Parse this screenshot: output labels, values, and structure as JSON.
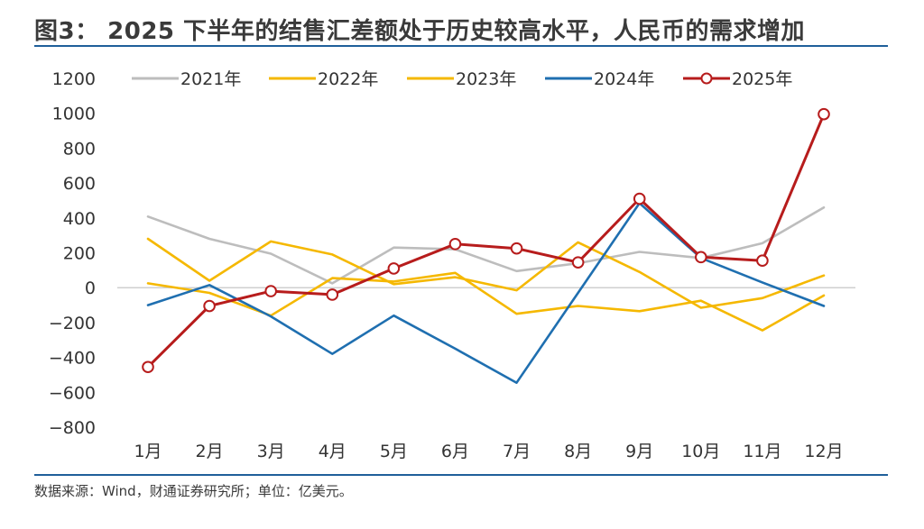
{
  "figure": {
    "title": "图3： 2025 下半年的结售汇差额处于历史较高水平，人民币的需求增加",
    "source": "数据来源：Wind，财通证券研究所；单位：亿美元。"
  },
  "chart_data": {
    "type": "line",
    "title": "",
    "xlabel": "",
    "ylabel": "",
    "ylim": [
      -800,
      1200
    ],
    "yticks": [
      "1200",
      "1000",
      "800",
      "600",
      "400",
      "200",
      "0",
      "−200",
      "−400",
      "−600",
      "−800"
    ],
    "yticks_values": [
      1200,
      1000,
      800,
      600,
      400,
      200,
      0,
      -200,
      -400,
      -600,
      -800
    ],
    "categories": [
      "1月",
      "2月",
      "3月",
      "4月",
      "5月",
      "6月",
      "7月",
      "8月",
      "9月",
      "10月",
      "11月",
      "12月"
    ],
    "legend_position": "top",
    "series": [
      {
        "name": "2021年",
        "color": "#bdbdbd",
        "marker": false,
        "values": [
          408,
          280,
          195,
          25,
          230,
          220,
          95,
          140,
          205,
          170,
          255,
          460
        ]
      },
      {
        "name": "2022年",
        "color": "#f5b800",
        "marker": false,
        "values": [
          280,
          40,
          265,
          190,
          20,
          60,
          -15,
          260,
          90,
          -115,
          -60,
          70
        ]
      },
      {
        "name": "2023年",
        "color": "#f5b800",
        "marker": false,
        "values": [
          25,
          -30,
          -160,
          55,
          35,
          85,
          -150,
          -105,
          -135,
          -75,
          -245,
          -45
        ]
      },
      {
        "name": "2024年",
        "color": "#1f6fb0",
        "marker": false,
        "values": [
          -100,
          15,
          -165,
          -380,
          -160,
          -350,
          -545,
          -30,
          485,
          170,
          30,
          -105
        ]
      },
      {
        "name": "2025年",
        "color": "#b71c1c",
        "marker": true,
        "values": [
          -455,
          -105,
          -20,
          -40,
          110,
          250,
          225,
          145,
          510,
          175,
          155,
          995
        ]
      }
    ]
  }
}
